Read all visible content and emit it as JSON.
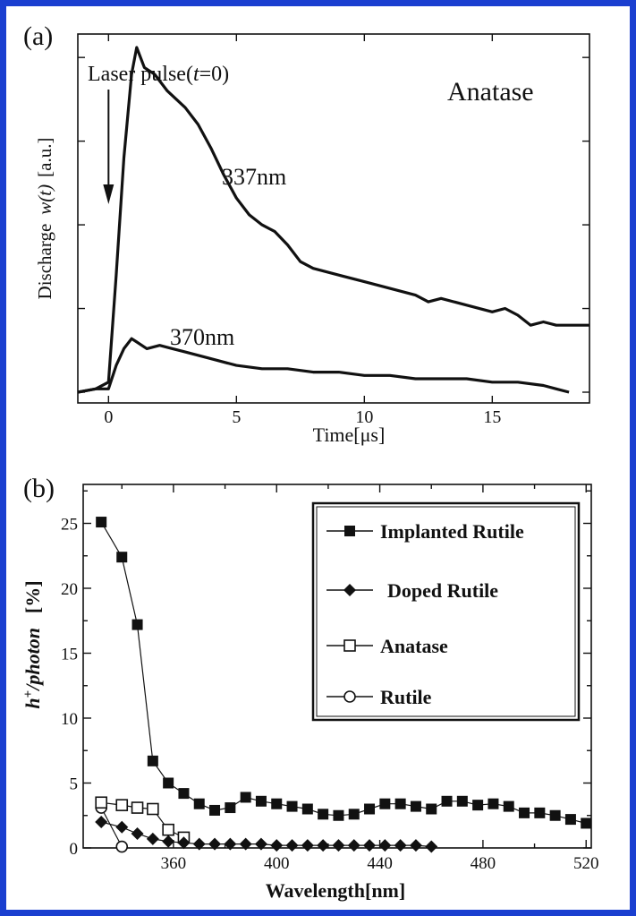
{
  "chart_data": [
    {
      "type": "line",
      "panel_label": "(a)",
      "xlabel": "Time[μs]",
      "ylabel_prefix": "Discharge",
      "ylabel_symbol": "w(t)",
      "ylabel_unit": "[a.u.]",
      "xlim": [
        -1.2,
        18.8
      ],
      "ylim": [
        0,
        1.07
      ],
      "x_ticks": [
        0,
        5,
        10,
        15
      ],
      "y_ticks_unlabeled": [
        0.0,
        0.25,
        0.5,
        0.75,
        1.0
      ],
      "grid": false,
      "annotations": {
        "pulse_prefix": "Laser pulse(",
        "pulse_var": "t",
        "pulse_suffix": "=0)",
        "pulse_arrow_x": 0,
        "material": "Anatase"
      },
      "series": [
        {
          "name": "337nm",
          "x": [
            -1.2,
            -0.5,
            0,
            0.3,
            0.6,
            0.9,
            1.1,
            1.4,
            1.8,
            2.3,
            3.0,
            3.5,
            4.0,
            4.5,
            5.0,
            5.5,
            6.0,
            6.5,
            7.0,
            7.5,
            8.0,
            9.0,
            10.0,
            11.0,
            12.0,
            12.5,
            13.0,
            14.0,
            15.0,
            15.5,
            16.0,
            16.5,
            17.0,
            17.5,
            18.0,
            18.8
          ],
          "y": [
            0.0,
            0.01,
            0.03,
            0.35,
            0.7,
            0.95,
            1.03,
            0.97,
            0.95,
            0.9,
            0.85,
            0.8,
            0.73,
            0.65,
            0.58,
            0.53,
            0.5,
            0.48,
            0.44,
            0.39,
            0.37,
            0.35,
            0.33,
            0.31,
            0.29,
            0.27,
            0.28,
            0.26,
            0.24,
            0.25,
            0.23,
            0.2,
            0.21,
            0.2,
            0.2,
            0.2
          ]
        },
        {
          "name": "370nm",
          "x": [
            -1.2,
            -0.5,
            0,
            0.3,
            0.6,
            0.9,
            1.1,
            1.5,
            2.0,
            2.5,
            3.0,
            4.0,
            5.0,
            6.0,
            7.0,
            8.0,
            9.0,
            10.0,
            11.0,
            12.0,
            13.0,
            14.0,
            15.0,
            16.0,
            17.0,
            17.5,
            18.0
          ],
          "y": [
            0.0,
            0.01,
            0.01,
            0.08,
            0.13,
            0.16,
            0.15,
            0.13,
            0.14,
            0.13,
            0.12,
            0.1,
            0.08,
            0.07,
            0.07,
            0.06,
            0.06,
            0.05,
            0.05,
            0.04,
            0.04,
            0.04,
            0.03,
            0.03,
            0.02,
            0.01,
            0.0
          ]
        }
      ]
    },
    {
      "type": "line",
      "panel_label": "(b)",
      "xlabel": "Wavelength[nm]",
      "ylabel_main": "h",
      "ylabel_sup": "+",
      "ylabel_rest": "/photon",
      "ylabel_unit": "[%]",
      "xlim": [
        325,
        522
      ],
      "ylim": [
        0,
        28
      ],
      "x_ticks": [
        360,
        400,
        440,
        480,
        520
      ],
      "y_ticks": [
        0,
        5,
        10,
        15,
        20,
        25
      ],
      "grid": false,
      "legend_position": "upper-right",
      "series": [
        {
          "name": "Implanted Rutile",
          "marker": "filled-square",
          "x": [
            332,
            340,
            346,
            352,
            358,
            364,
            370,
            376,
            382,
            388,
            394,
            400,
            406,
            412,
            418,
            424,
            430,
            436,
            442,
            448,
            454,
            460,
            466,
            472,
            478,
            484,
            490,
            496,
            502,
            508,
            514,
            520
          ],
          "y": [
            25.1,
            22.4,
            17.2,
            6.7,
            5.0,
            4.2,
            3.4,
            2.9,
            3.1,
            3.9,
            3.6,
            3.4,
            3.2,
            3.0,
            2.6,
            2.5,
            2.6,
            3.0,
            3.4,
            3.4,
            3.2,
            3.0,
            3.6,
            3.6,
            3.3,
            3.4,
            3.2,
            2.7,
            2.7,
            2.5,
            2.2,
            1.9
          ]
        },
        {
          "name": "Doped Rutile",
          "marker": "filled-diamond",
          "x": [
            332,
            340,
            346,
            352,
            358,
            364,
            370,
            376,
            382,
            388,
            394,
            400,
            406,
            412,
            418,
            424,
            430,
            436,
            442,
            448,
            454,
            460
          ],
          "y": [
            2.0,
            1.6,
            1.1,
            0.7,
            0.5,
            0.4,
            0.3,
            0.3,
            0.3,
            0.3,
            0.3,
            0.2,
            0.2,
            0.2,
            0.2,
            0.2,
            0.2,
            0.2,
            0.2,
            0.2,
            0.2,
            0.1
          ]
        },
        {
          "name": "Anatase",
          "marker": "open-square",
          "x": [
            332,
            340,
            346,
            352,
            358,
            364
          ],
          "y": [
            3.5,
            3.3,
            3.1,
            3.0,
            1.4,
            0.8
          ]
        },
        {
          "name": "Rutile",
          "marker": "open-circle",
          "x": [
            332,
            340
          ],
          "y": [
            3.1,
            0.1
          ]
        }
      ]
    }
  ]
}
